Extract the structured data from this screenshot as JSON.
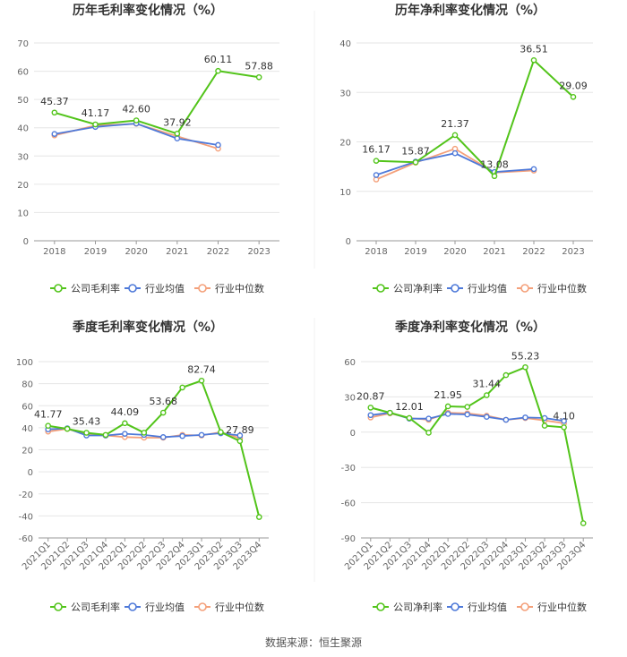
{
  "source": "数据来源：恒生聚源",
  "colors": {
    "company": "#52c41a",
    "average": "#4e79d9",
    "median": "#f4a07a",
    "grid": "#e6e6e6",
    "axis": "#999999"
  },
  "chart_data": [
    {
      "type": "line",
      "title": "历年毛利率变化情况（%）",
      "categories": [
        "2018",
        "2019",
        "2020",
        "2021",
        "2022",
        "2023"
      ],
      "ylim": [
        0,
        70
      ],
      "yticks": [
        0,
        10,
        20,
        30,
        40,
        50,
        60,
        70
      ],
      "series": [
        {
          "name": "公司毛利率",
          "color": "#52c41a",
          "values": [
            45.37,
            41.17,
            42.6,
            37.92,
            60.11,
            57.88
          ],
          "labels": [
            "45.37",
            "41.17",
            "42.60",
            "37.92",
            "60.11",
            "57.88"
          ]
        },
        {
          "name": "行业均值",
          "color": "#4e79d9",
          "values": [
            37.8,
            40.3,
            41.5,
            36.2,
            33.9,
            null
          ]
        },
        {
          "name": "行业中位数",
          "color": "#f4a07a",
          "values": [
            37.3,
            40.8,
            41.4,
            37.0,
            32.6,
            null
          ]
        }
      ],
      "grid": true,
      "legend": "bottom"
    },
    {
      "type": "line",
      "title": "历年净利率变化情况（%）",
      "categories": [
        "2018",
        "2019",
        "2020",
        "2021",
        "2022",
        "2023"
      ],
      "ylim": [
        0,
        40
      ],
      "yticks": [
        0,
        10,
        20,
        30,
        40
      ],
      "series": [
        {
          "name": "公司净利率",
          "color": "#52c41a",
          "values": [
            16.17,
            15.87,
            21.37,
            13.08,
            36.51,
            29.09
          ],
          "labels": [
            "16.17",
            "15.87",
            "21.37",
            "13.08",
            "36.51",
            "29.09"
          ]
        },
        {
          "name": "行业均值",
          "color": "#4e79d9",
          "values": [
            13.3,
            16.0,
            17.7,
            13.9,
            14.5,
            null
          ]
        },
        {
          "name": "行业中位数",
          "color": "#f4a07a",
          "values": [
            12.4,
            15.8,
            18.6,
            13.8,
            14.2,
            null
          ]
        }
      ],
      "grid": true,
      "legend": "bottom"
    },
    {
      "type": "line",
      "title": "季度毛利率变化情况（%）",
      "categories": [
        "2021Q1",
        "2021Q2",
        "2021Q3",
        "2021Q4",
        "2022Q1",
        "2022Q2",
        "2022Q3",
        "2022Q4",
        "2023Q1",
        "2023Q2",
        "2023Q3",
        "2023Q4"
      ],
      "ylim": [
        -60,
        100
      ],
      "yticks": [
        -60,
        -40,
        -20,
        0,
        20,
        40,
        60,
        80,
        100
      ],
      "series": [
        {
          "name": "公司毛利率",
          "color": "#52c41a",
          "values": [
            41.77,
            39.0,
            35.43,
            33.5,
            44.09,
            35.5,
            53.68,
            76.5,
            82.74,
            36.0,
            27.89,
            -41.0
          ],
          "labels": [
            "41.77",
            "",
            "35.43",
            "",
            "44.09",
            "",
            "53.68",
            "",
            "82.74",
            "",
            "27.89",
            ""
          ]
        },
        {
          "name": "行业均值",
          "color": "#4e79d9",
          "values": [
            38.5,
            39.5,
            33.0,
            33.0,
            34.5,
            33.5,
            31.5,
            32.5,
            33.5,
            35.0,
            33.0,
            null
          ]
        },
        {
          "name": "行业中位数",
          "color": "#f4a07a",
          "values": [
            36.5,
            39.0,
            34.0,
            33.0,
            31.5,
            31.0,
            31.0,
            33.5,
            33.0,
            36.0,
            30.5,
            null
          ]
        }
      ],
      "grid": true,
      "legend": "bottom"
    },
    {
      "type": "line",
      "title": "季度净利率变化情况（%）",
      "categories": [
        "2021Q1",
        "2021Q2",
        "2021Q3",
        "2021Q4",
        "2022Q1",
        "2022Q2",
        "2022Q3",
        "2022Q4",
        "2023Q1",
        "2023Q2",
        "2023Q3",
        "2023Q4"
      ],
      "ylim": [
        -90,
        60
      ],
      "yticks": [
        -90,
        -60,
        -30,
        0,
        30,
        60
      ],
      "series": [
        {
          "name": "公司净利率",
          "color": "#52c41a",
          "values": [
            20.87,
            16.5,
            12.01,
            -0.5,
            21.95,
            21.5,
            31.44,
            48.5,
            55.23,
            5.5,
            4.1,
            -77.5
          ],
          "labels": [
            "20.87",
            "",
            "12.01",
            "",
            "21.95",
            "",
            "31.44",
            "",
            "55.23",
            "",
            "4.10",
            ""
          ]
        },
        {
          "name": "行业均值",
          "color": "#4e79d9",
          "values": [
            14.5,
            16.5,
            11.5,
            11.5,
            15.5,
            15.0,
            13.0,
            10.5,
            12.5,
            12.0,
            9.5,
            null
          ]
        },
        {
          "name": "行业中位数",
          "color": "#f4a07a",
          "values": [
            12.5,
            16.0,
            12.0,
            10.5,
            16.5,
            16.0,
            14.0,
            10.5,
            12.0,
            10.0,
            7.5,
            null
          ]
        }
      ],
      "grid": true,
      "legend": "bottom"
    }
  ]
}
